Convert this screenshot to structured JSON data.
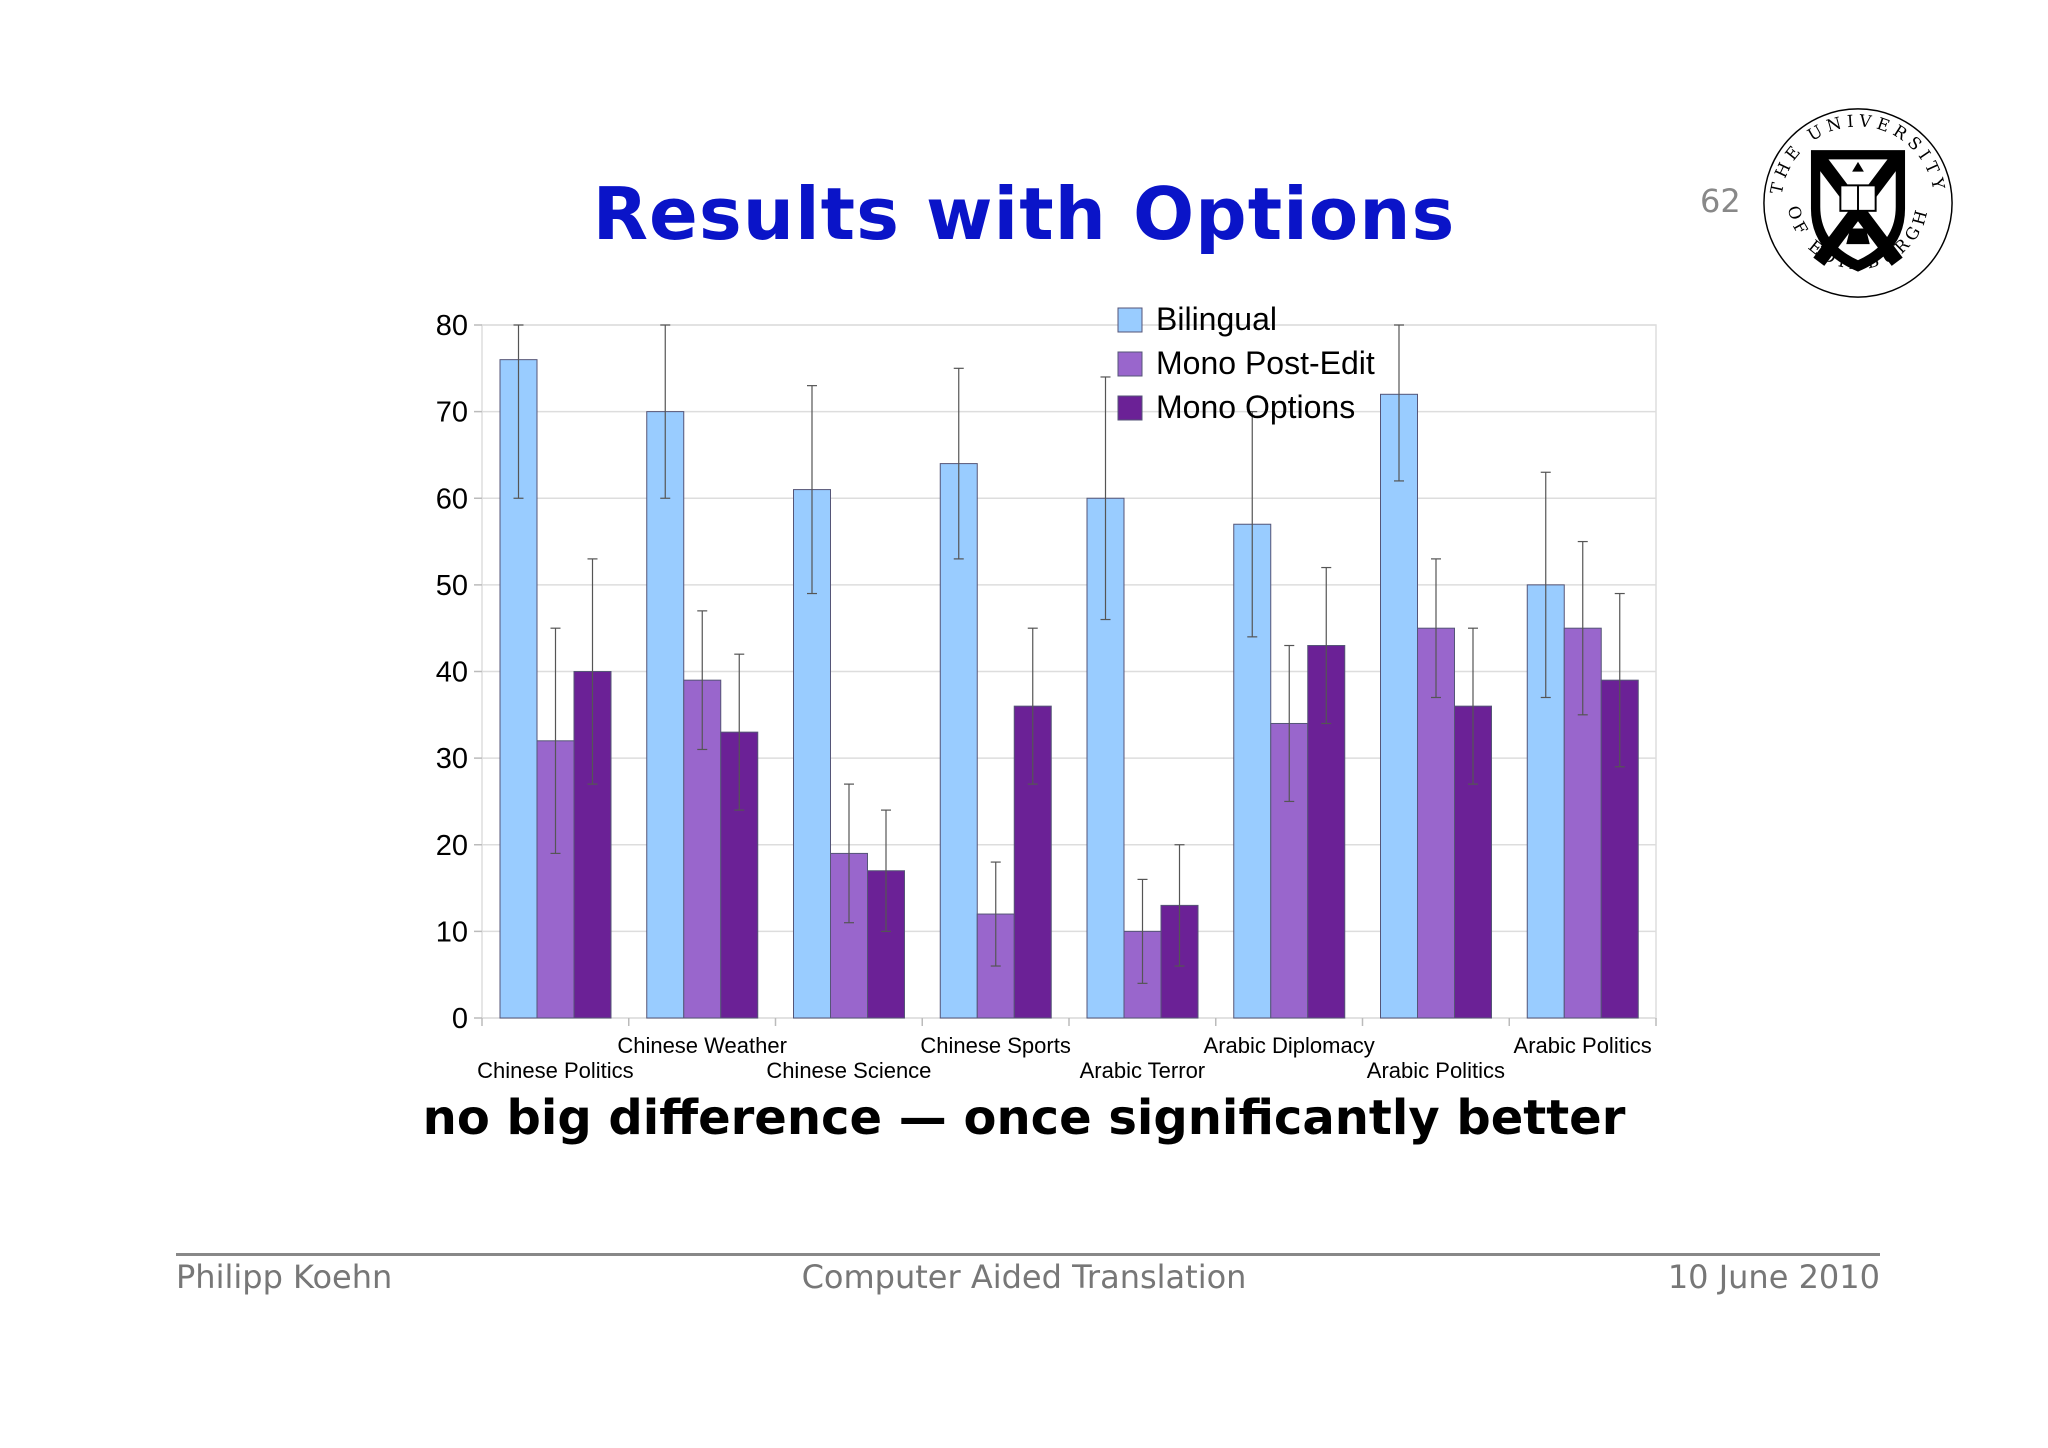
{
  "slide": {
    "title": "Results with Options",
    "page_number": "62",
    "conclusion": "no big difference — once significantly better"
  },
  "logo": {
    "text_top": "THE UNIVERSITY",
    "text_bottom": "OF EDINBURGH"
  },
  "footer": {
    "author": "Philipp Koehn",
    "title": "Computer Aided Translation",
    "date": "10 June 2010"
  },
  "colors": {
    "title": "#0a14c8",
    "bilingual": "#99ccff",
    "mono_post_edit": "#9966cc",
    "mono_options": "#6b2196"
  },
  "chart_data": {
    "type": "bar",
    "title": "",
    "xlabel": "",
    "ylabel": "",
    "ylim": [
      0,
      80
    ],
    "yticks": [
      0,
      10,
      20,
      30,
      40,
      50,
      60,
      70,
      80
    ],
    "grid": true,
    "legend_position": "top-center",
    "categories": [
      "Chinese Politics",
      "Chinese Weather",
      "Chinese Science",
      "Chinese Sports",
      "Arabic Terror",
      "Arabic Diplomacy",
      "Arabic Politics",
      "Arabic Politics"
    ],
    "series": [
      {
        "name": "Bilingual",
        "color": "#99ccff",
        "values": [
          76,
          70,
          61,
          64,
          60,
          57,
          72,
          50
        ],
        "error_low": [
          60,
          60,
          49,
          53,
          46,
          44,
          62,
          37
        ],
        "error_high": [
          80,
          80,
          73,
          75,
          74,
          70,
          80,
          63
        ]
      },
      {
        "name": "Mono Post-Edit",
        "color": "#9966cc",
        "values": [
          32,
          39,
          19,
          12,
          10,
          34,
          45,
          45
        ],
        "error_low": [
          19,
          31,
          11,
          6,
          4,
          25,
          37,
          35
        ],
        "error_high": [
          45,
          47,
          27,
          18,
          16,
          43,
          53,
          55
        ]
      },
      {
        "name": "Mono Options",
        "color": "#6b2196",
        "values": [
          40,
          33,
          17,
          36,
          13,
          43,
          36,
          39
        ],
        "error_low": [
          27,
          24,
          10,
          27,
          6,
          34,
          27,
          29
        ],
        "error_high": [
          53,
          42,
          24,
          45,
          20,
          52,
          45,
          49
        ]
      }
    ]
  }
}
